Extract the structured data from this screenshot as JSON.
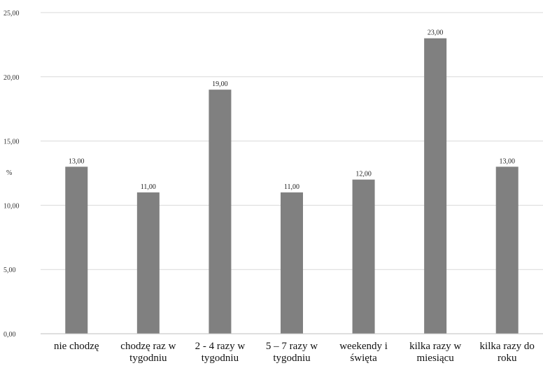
{
  "chart_data": {
    "type": "bar",
    "title": "",
    "xlabel": "",
    "ylabel": "%",
    "ylim": [
      0,
      25
    ],
    "yticks": [
      "0,00",
      "5,00",
      "10,00",
      "15,00",
      "20,00",
      "25,00"
    ],
    "ytick_values": [
      0,
      5,
      10,
      15,
      20,
      25
    ],
    "grid": true,
    "legend": "none",
    "bar_color": "#808080",
    "categories": [
      [
        "nie chodzę"
      ],
      [
        "chodzę raz w",
        "tygodniu"
      ],
      [
        "2 - 4 razy w",
        "tygodniu"
      ],
      [
        "5 – 7 razy w",
        "tygodniu"
      ],
      [
        "weekendy i",
        "święta"
      ],
      [
        "kilka razy w",
        "miesiącu"
      ],
      [
        "kilka razy do",
        "roku"
      ]
    ],
    "values": [
      13,
      11,
      19,
      11,
      12,
      23,
      13
    ],
    "value_labels": [
      "13,00",
      "11,00",
      "19,00",
      "11,00",
      "12,00",
      "23,00",
      "13,00"
    ]
  }
}
